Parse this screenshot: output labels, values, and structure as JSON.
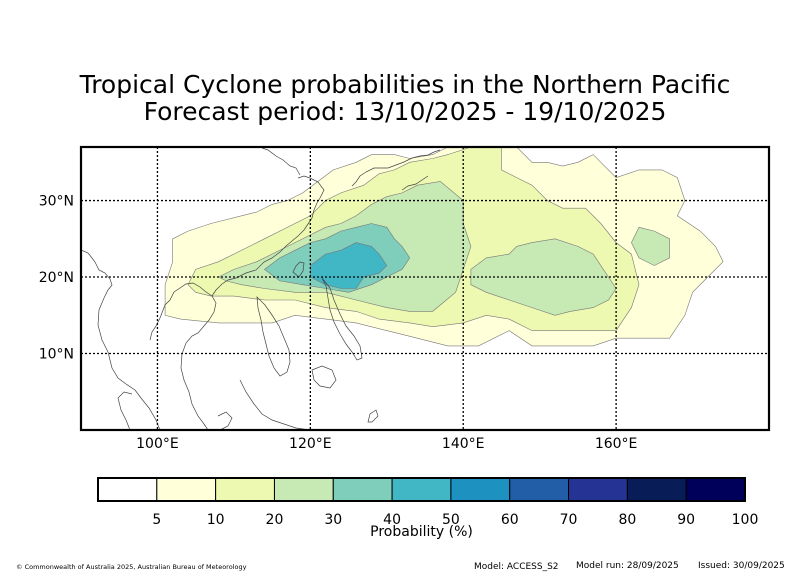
{
  "title": {
    "line1": "Tropical Cyclone probabilities in the Northern Pacific",
    "line2": "Forecast period: 13/10/2025 - 19/10/2025"
  },
  "map": {
    "projection": "equirectangular",
    "lon_range": [
      90,
      180
    ],
    "lat_range": [
      0,
      37
    ],
    "lat_ticks": [
      {
        "value": 10,
        "label": "10°N"
      },
      {
        "value": 20,
        "label": "20°N"
      },
      {
        "value": 30,
        "label": "30°N"
      }
    ],
    "lon_ticks": [
      {
        "value": 100,
        "label": "100°E"
      },
      {
        "value": 120,
        "label": "120°E"
      },
      {
        "value": 140,
        "label": "140°E"
      },
      {
        "value": 160,
        "label": "160°E"
      }
    ],
    "gridlines": "dotted"
  },
  "probability_regions": [
    {
      "level": 5,
      "color": "#ffffd9",
      "polygon": [
        [
          102,
          25
        ],
        [
          104,
          26
        ],
        [
          107,
          27
        ],
        [
          111,
          28
        ],
        [
          113,
          28.5
        ],
        [
          115,
          29.5
        ],
        [
          117,
          30
        ],
        [
          119,
          31
        ],
        [
          121,
          32.5
        ],
        [
          123,
          34
        ],
        [
          126,
          35
        ],
        [
          128,
          36
        ],
        [
          131,
          36
        ],
        [
          133,
          35.5
        ],
        [
          136,
          36
        ],
        [
          138,
          37
        ],
        [
          145,
          37
        ],
        [
          147,
          37
        ],
        [
          149,
          35
        ],
        [
          151,
          35
        ],
        [
          153,
          34.5
        ],
        [
          155,
          35
        ],
        [
          157,
          36
        ],
        [
          158,
          35
        ],
        [
          160,
          33
        ],
        [
          163,
          34
        ],
        [
          166,
          34
        ],
        [
          168,
          33
        ],
        [
          169,
          30
        ],
        [
          168,
          28
        ],
        [
          171,
          26
        ],
        [
          173,
          24
        ],
        [
          174,
          22
        ],
        [
          172,
          20
        ],
        [
          170,
          18
        ],
        [
          169,
          15
        ],
        [
          167,
          12
        ],
        [
          163,
          12
        ],
        [
          160,
          12
        ],
        [
          157,
          11
        ],
        [
          153,
          11
        ],
        [
          149,
          11
        ],
        [
          146,
          13
        ],
        [
          142,
          11
        ],
        [
          138,
          11
        ],
        [
          134,
          12
        ],
        [
          130,
          13
        ],
        [
          126,
          14
        ],
        [
          122,
          14.5
        ],
        [
          118,
          15
        ],
        [
          115,
          14
        ],
        [
          112,
          14
        ],
        [
          108,
          14
        ],
        [
          103,
          14.5
        ],
        [
          101,
          15
        ],
        [
          101,
          19
        ],
        [
          102,
          22
        ]
      ]
    },
    {
      "level": 10,
      "color": "#edf8b1",
      "polygon": [
        [
          104,
          19
        ],
        [
          105,
          21
        ],
        [
          108,
          22
        ],
        [
          110,
          23
        ],
        [
          114,
          25
        ],
        [
          116,
          26
        ],
        [
          118,
          27
        ],
        [
          120,
          28
        ],
        [
          122,
          30
        ],
        [
          124,
          31
        ],
        [
          127,
          32
        ],
        [
          129,
          33.5
        ],
        [
          131,
          34
        ],
        [
          133,
          35
        ],
        [
          136,
          35.5
        ],
        [
          138,
          36
        ],
        [
          141,
          37
        ],
        [
          145,
          37
        ],
        [
          145,
          34
        ],
        [
          147,
          33
        ],
        [
          149,
          32
        ],
        [
          151,
          30
        ],
        [
          153,
          29
        ],
        [
          156,
          29
        ],
        [
          158,
          27
        ],
        [
          160,
          24.5
        ],
        [
          162,
          23
        ],
        [
          163,
          19
        ],
        [
          162,
          16
        ],
        [
          160,
          13
        ],
        [
          156,
          13
        ],
        [
          152,
          13
        ],
        [
          149,
          13
        ],
        [
          146,
          14.5
        ],
        [
          143,
          15
        ],
        [
          140,
          14
        ],
        [
          136,
          13.5
        ],
        [
          133,
          14
        ],
        [
          129,
          14.5
        ],
        [
          126,
          15.5
        ],
        [
          122,
          16
        ],
        [
          118,
          17
        ],
        [
          114,
          17
        ],
        [
          110,
          17.5
        ],
        [
          107,
          17.5
        ],
        [
          105,
          18
        ]
      ]
    },
    {
      "level": 20,
      "color": "#c7e9b4",
      "polygon": [
        [
          108,
          20
        ],
        [
          110,
          21
        ],
        [
          113,
          22
        ],
        [
          115,
          23
        ],
        [
          118,
          24.5
        ],
        [
          120,
          25.5
        ],
        [
          122,
          26.5
        ],
        [
          124,
          27
        ],
        [
          126,
          28
        ],
        [
          128,
          29.5
        ],
        [
          130,
          30.5
        ],
        [
          132,
          31
        ],
        [
          134,
          32
        ],
        [
          137,
          32.5
        ],
        [
          140,
          30
        ],
        [
          140,
          27
        ],
        [
          141,
          24
        ],
        [
          140,
          21
        ],
        [
          139,
          18
        ],
        [
          136,
          15.5
        ],
        [
          133,
          15.5
        ],
        [
          130,
          16
        ],
        [
          126,
          17
        ],
        [
          122,
          18
        ],
        [
          118,
          18
        ],
        [
          114,
          18.5
        ],
        [
          111,
          19
        ],
        [
          109,
          19.5
        ]
      ]
    },
    {
      "level": 20,
      "color": "#c7e9b4",
      "polygon": [
        [
          141,
          21
        ],
        [
          143,
          22.5
        ],
        [
          146,
          23
        ],
        [
          147,
          24
        ],
        [
          149,
          24.5
        ],
        [
          152,
          25
        ],
        [
          155,
          24
        ],
        [
          157,
          23
        ],
        [
          158,
          21.5
        ],
        [
          159,
          20
        ],
        [
          160,
          18.5
        ],
        [
          159,
          17
        ],
        [
          157,
          16
        ],
        [
          154,
          15.5
        ],
        [
          152,
          15
        ],
        [
          149,
          16
        ],
        [
          146,
          17
        ],
        [
          143,
          18
        ],
        [
          141,
          19
        ]
      ]
    },
    {
      "level": 20,
      "color": "#c7e9b4",
      "polygon": [
        [
          163,
          26.5
        ],
        [
          165,
          26
        ],
        [
          167,
          25
        ],
        [
          167,
          22.5
        ],
        [
          165,
          21.5
        ],
        [
          163,
          22.5
        ],
        [
          162,
          24.5
        ]
      ]
    },
    {
      "level": 30,
      "color": "#7fcdbb",
      "polygon": [
        [
          114,
          21
        ],
        [
          116,
          22.5
        ],
        [
          118,
          23.5
        ],
        [
          120,
          24.5
        ],
        [
          122,
          25
        ],
        [
          124,
          26
        ],
        [
          126,
          26.5
        ],
        [
          128,
          27
        ],
        [
          130,
          26.5
        ],
        [
          131,
          25
        ],
        [
          132,
          24
        ],
        [
          133,
          22.5
        ],
        [
          132,
          21
        ],
        [
          130,
          20
        ],
        [
          128,
          19
        ],
        [
          125,
          18
        ],
        [
          122,
          18.5
        ],
        [
          119,
          19
        ],
        [
          116,
          19.5
        ]
      ]
    },
    {
      "level": 40,
      "color": "#41b6c4",
      "polygon": [
        [
          120,
          21.5
        ],
        [
          122,
          23
        ],
        [
          124,
          23.5
        ],
        [
          126,
          24.5
        ],
        [
          128,
          24
        ],
        [
          129,
          23
        ],
        [
          130,
          21.5
        ],
        [
          129,
          20.5
        ],
        [
          127,
          20
        ],
        [
          126,
          18.5
        ],
        [
          124,
          18.5
        ],
        [
          122,
          19
        ],
        [
          120,
          20
        ]
      ]
    }
  ],
  "colorbar": {
    "label": "Probability (%)",
    "ticks": [
      "5",
      "10",
      "20",
      "30",
      "40",
      "50",
      "60",
      "70",
      "80",
      "90",
      "100"
    ],
    "colors": [
      "#ffffff",
      "#ffffd9",
      "#edf8b1",
      "#c7e9b4",
      "#7fcdbb",
      "#41b6c4",
      "#1d91c0",
      "#225ea8",
      "#253494",
      "#081d58",
      "#00005a"
    ]
  },
  "footer": {
    "copyright": "© Commonwealth of Australia 2025, Australian Bureau of Meteorology",
    "model": "Model: ACCESS_S2",
    "model_run": "Model run: 28/09/2025",
    "issued": "Issued: 30/09/2025"
  }
}
